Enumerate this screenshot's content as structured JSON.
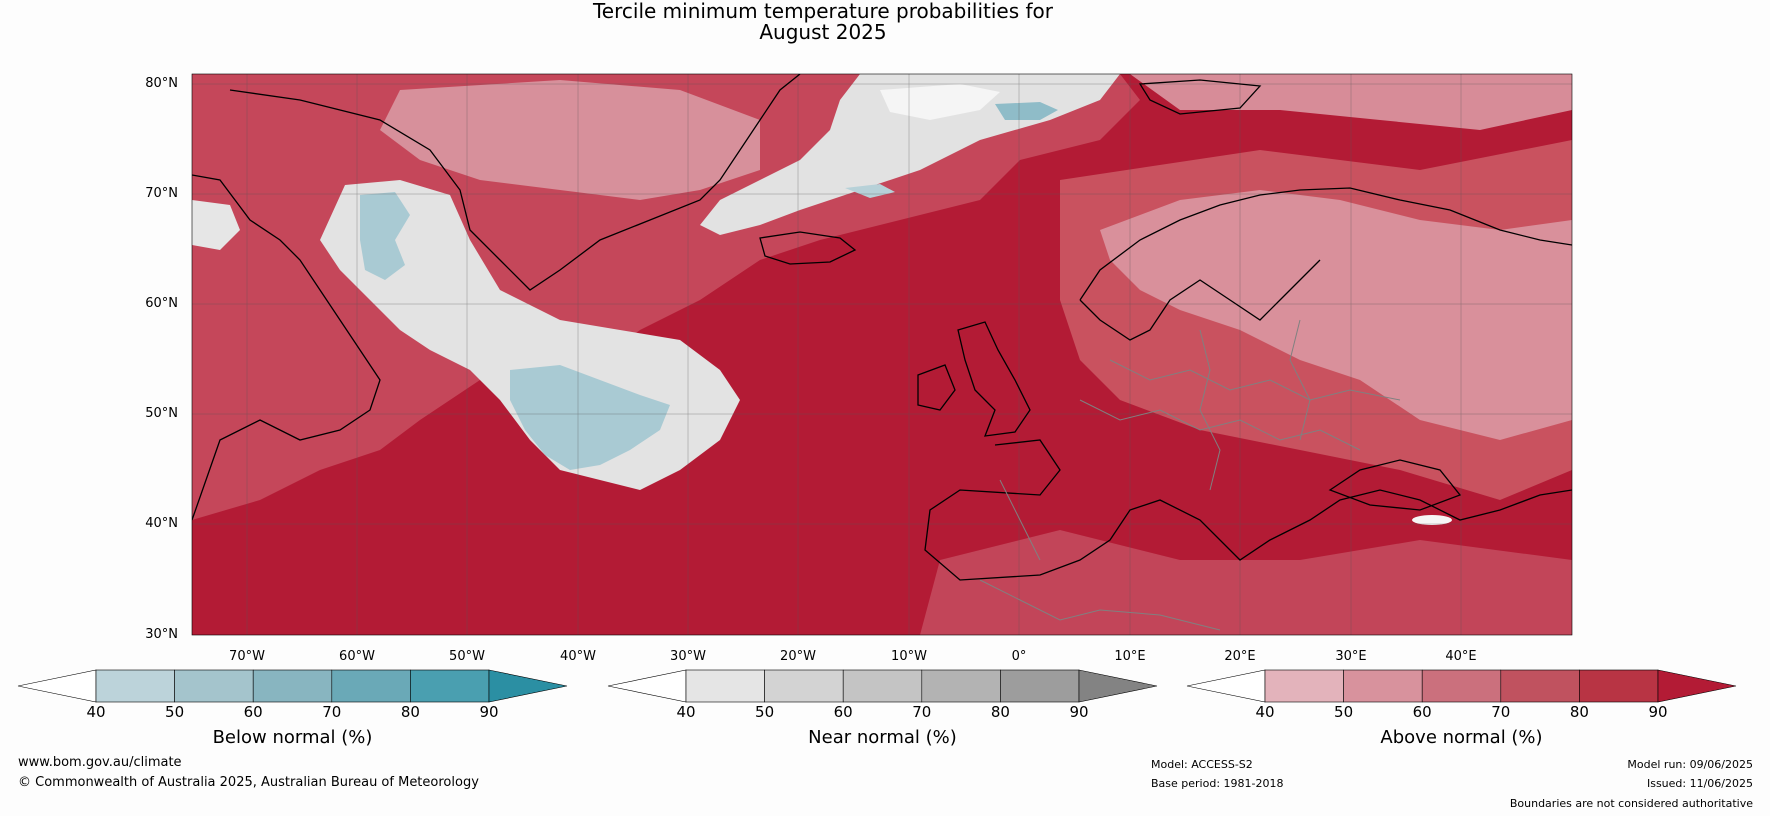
{
  "title": {
    "line1": "Tercile minimum temperature probabilities for",
    "line2": "August 2025"
  },
  "map": {
    "lat_labels": [
      "80°N",
      "70°N",
      "60°N",
      "50°N",
      "40°N",
      "30°N"
    ],
    "lon_labels": [
      "70°W",
      "60°W",
      "50°W",
      "40°W",
      "30°W",
      "20°W",
      "10°W",
      "0°",
      "10°E",
      "20°E",
      "30°E",
      "40°E"
    ],
    "colors": {
      "above_dark": "#b31b35",
      "above_mid": "#c8505f",
      "above_light": "#d88c97",
      "near": "#e3e3e3",
      "below": "#a9cad3",
      "land_coast": "#000000",
      "borders": "#808080"
    }
  },
  "colorbars": [
    {
      "label": "Below normal (%)",
      "ticks": [
        "40",
        "50",
        "60",
        "70",
        "80",
        "90"
      ],
      "colors": [
        "#ffffff",
        "#bcd3da",
        "#a4c4cc",
        "#88b5c0",
        "#6aa9b7",
        "#4a9fb0",
        "#2b8fa3"
      ]
    },
    {
      "label": "Near normal (%)",
      "ticks": [
        "40",
        "50",
        "60",
        "70",
        "80",
        "90"
      ],
      "colors": [
        "#ffffff",
        "#e5e5e5",
        "#d3d3d3",
        "#c4c4c4",
        "#b3b3b3",
        "#9d9d9d",
        "#838383"
      ]
    },
    {
      "label": "Above normal (%)",
      "ticks": [
        "40",
        "50",
        "60",
        "70",
        "80",
        "90"
      ],
      "colors": [
        "#ffffff",
        "#e3b3bb",
        "#d8929d",
        "#cb707d",
        "#c0525f",
        "#b83444",
        "#b31b35"
      ]
    }
  ],
  "footer": {
    "website": "www.bom.gov.au/climate",
    "copyright": "© Commonwealth of Australia 2025, Australian Bureau of Meteorology",
    "model": "Model: ACCESS-S2",
    "base_period": "Base period: 1981-2018",
    "model_run": "Model run: 09/06/2025",
    "issued": "Issued: 11/06/2025",
    "disclaimer": "Boundaries are not considered authoritative"
  }
}
